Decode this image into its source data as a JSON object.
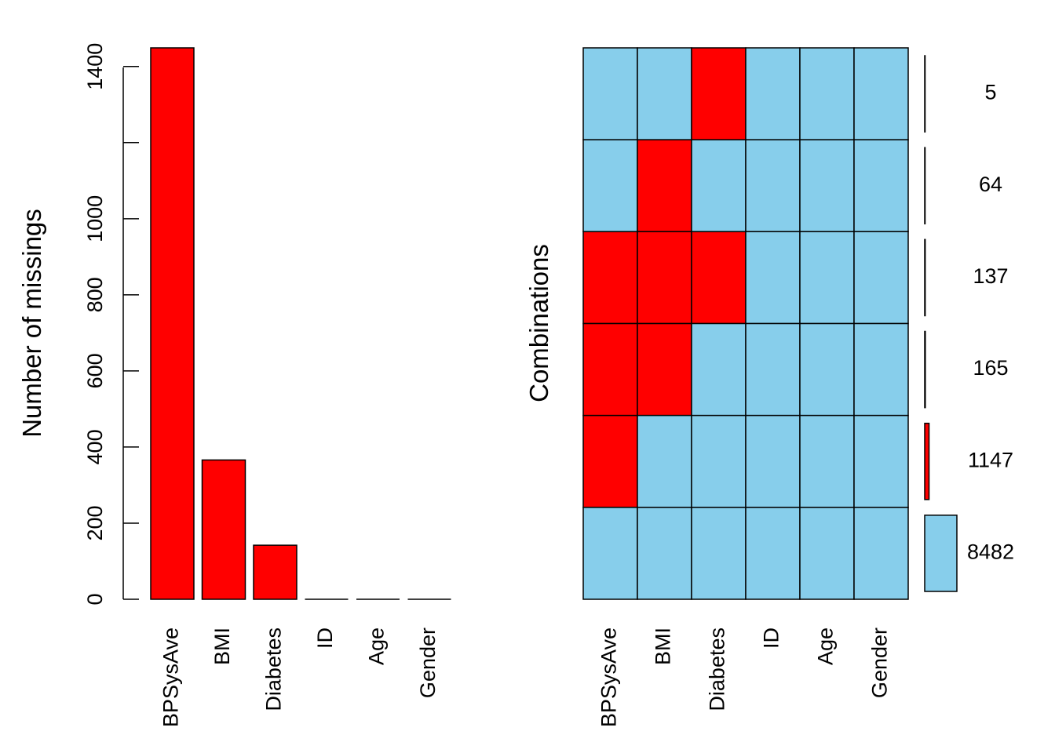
{
  "colors": {
    "missing": "#ff0000",
    "present": "#87ceeb"
  },
  "chart_data": [
    {
      "type": "bar",
      "categories": [
        "BPSysAve",
        "BMI",
        "Diabetes",
        "ID",
        "Age",
        "Gender"
      ],
      "values": [
        1449,
        366,
        142,
        0,
        0,
        0
      ],
      "ylabel": "Number of missings",
      "ylim": [
        0,
        1449
      ],
      "yticks": [
        0,
        200,
        400,
        600,
        800,
        1000,
        1200,
        1400
      ],
      "ytick_labels": [
        "0",
        "200",
        "400",
        "600",
        "800",
        "1000",
        "",
        "1400"
      ]
    },
    {
      "type": "heatmap",
      "ylabel": "Combinations",
      "columns": [
        "BPSysAve",
        "BMI",
        "Diabetes",
        "ID",
        "Age",
        "Gender"
      ],
      "rows": [
        {
          "pattern": [
            0,
            0,
            1,
            0,
            0,
            0
          ],
          "count": 5,
          "count_label": "5"
        },
        {
          "pattern": [
            0,
            1,
            0,
            0,
            0,
            0
          ],
          "count": 64,
          "count_label": "64"
        },
        {
          "pattern": [
            1,
            1,
            1,
            0,
            0,
            0
          ],
          "count": 137,
          "count_label": "137"
        },
        {
          "pattern": [
            1,
            1,
            0,
            0,
            0,
            0
          ],
          "count": 165,
          "count_label": "165"
        },
        {
          "pattern": [
            1,
            0,
            0,
            0,
            0,
            0
          ],
          "count": 1147,
          "count_label": "1147"
        },
        {
          "pattern": [
            0,
            0,
            0,
            0,
            0,
            0
          ],
          "count": 8482,
          "count_label": "8482"
        }
      ]
    }
  ]
}
